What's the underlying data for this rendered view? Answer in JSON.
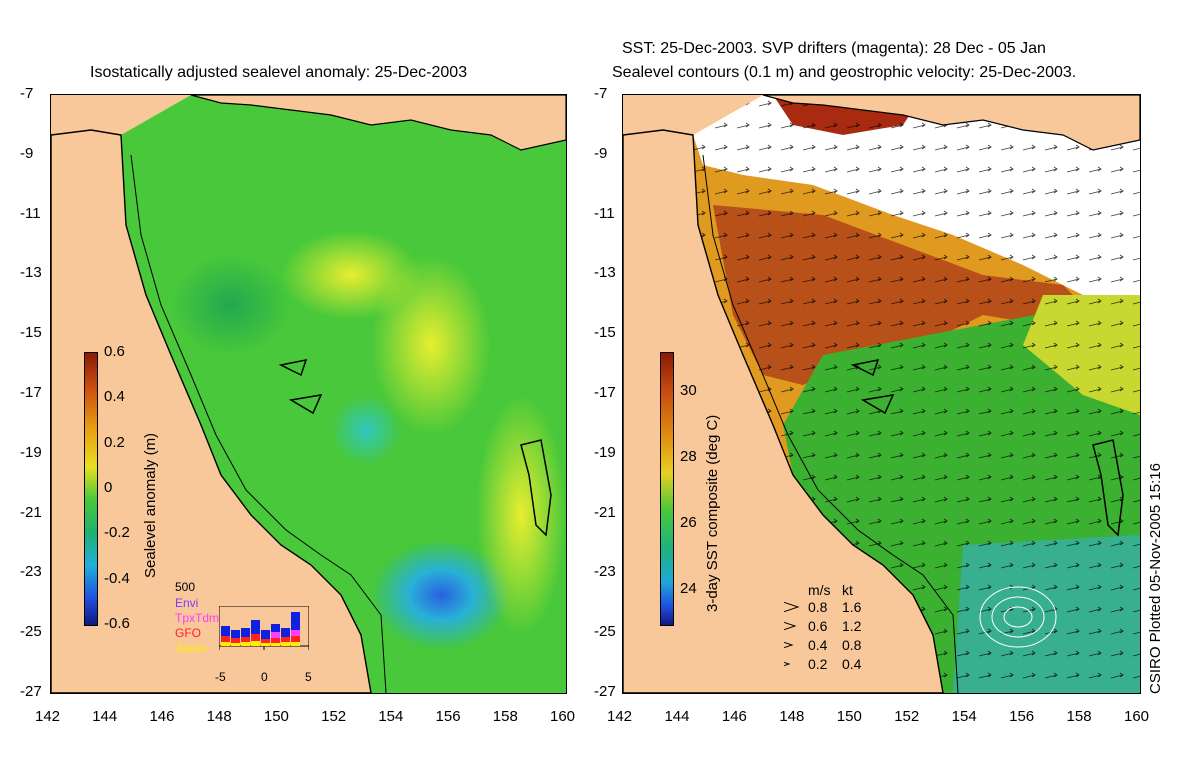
{
  "left_panel": {
    "title": "Isostatically adjusted sealevel anomaly: 25-Dec-2003",
    "colorbar_label": "Sealevel anomaly (m)",
    "colorbar_ticks": [
      "0.6",
      "0.4",
      "0.2",
      "0",
      "-0.2",
      "-0.4",
      "-0.6"
    ],
    "hist": {
      "count_label": "500",
      "missions": [
        {
          "name": "Envi",
          "color": "#7a3cff"
        },
        {
          "name": "TpxTdm",
          "color": "#ff3cff"
        },
        {
          "name": "GFO",
          "color": "#ff2020"
        },
        {
          "name": "Jason",
          "color": "#ffee00"
        }
      ],
      "x_ticks": [
        "-5",
        "0",
        "5"
      ]
    }
  },
  "right_panel": {
    "title_line1": "SST: 25-Dec-2003. SVP drifters (magenta): 28 Dec - 05 Jan",
    "title_line2": "Sealevel contours (0.1 m) and geostrophic velocity: 25-Dec-2003.",
    "colorbar_label": "3-day SST composite (deg C)",
    "colorbar_ticks": [
      "30",
      "28",
      "26",
      "24"
    ],
    "velocity_legend": {
      "header_ms": "m/s",
      "header_kt": "kt",
      "rows": [
        {
          "ms": "0.8",
          "kt": "1.6"
        },
        {
          "ms": "0.6",
          "kt": "1.2"
        },
        {
          "ms": "0.4",
          "kt": "0.8"
        },
        {
          "ms": "0.2",
          "kt": "0.4"
        }
      ]
    }
  },
  "axes": {
    "y_ticks": [
      "-7",
      "-9",
      "-11",
      "-13",
      "-15",
      "-17",
      "-19",
      "-21",
      "-23",
      "-25",
      "-27"
    ],
    "x_ticks": [
      "142",
      "144",
      "146",
      "148",
      "150",
      "152",
      "154",
      "156",
      "158",
      "160"
    ],
    "lon_range": [
      142,
      160
    ],
    "lat_range": [
      -27,
      -7
    ]
  },
  "credit": "CSIRO Plotted 05-Nov-2005 15:16",
  "colors": {
    "land": "#f8c89a",
    "sla_green": "#3ec23a",
    "sst_orange": "#d97a18",
    "sst_green": "#2ea82e",
    "cloud": "#ffffff"
  }
}
